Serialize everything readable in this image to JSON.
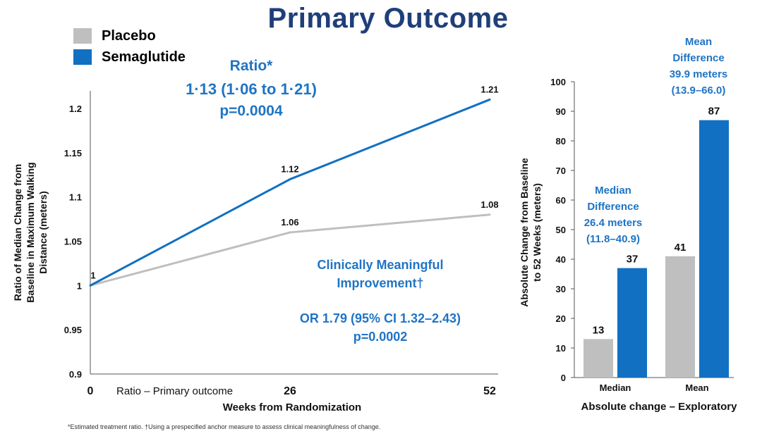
{
  "title": "Primary Outcome",
  "colors": {
    "placebo": "#bfbfbf",
    "semaglutide": "#1170c2",
    "title": "#1f3f7a",
    "annotation": "#1f74c4"
  },
  "legend": [
    {
      "label": "Placebo",
      "color": "#bfbfbf"
    },
    {
      "label": "Semaglutide",
      "color": "#1170c2"
    }
  ],
  "footnote": "*Estimated treatment ratio. †Using a prespecified anchor measure to assess clinical meaningfulness of change.",
  "chart_data": [
    {
      "type": "line",
      "x": [
        0,
        26,
        52
      ],
      "x_tick_labels": [
        "0",
        "26",
        "52"
      ],
      "x_inline_label": "Ratio – Primary outcome",
      "xlabel": "Weeks from Randomization",
      "ylabel_lines": [
        "Ratio of Median Change from",
        "Baseline in Maximum Walking",
        "Distance (meters)"
      ],
      "ylim": [
        0.9,
        1.2
      ],
      "y_ticks": [
        0.9,
        0.95,
        1,
        1.05,
        1.1,
        1.15,
        1.2
      ],
      "y_tick_labels": [
        "0.9",
        "0.95",
        "1",
        "1.05",
        "1.1",
        "1.15",
        "1.2"
      ],
      "series": [
        {
          "name": "Placebo",
          "color": "#bfbfbf",
          "values": [
            1,
            1.06,
            1.08
          ],
          "labels": [
            "",
            "1.06",
            "1.08"
          ]
        },
        {
          "name": "Semaglutide",
          "color": "#1170c2",
          "values": [
            1,
            1.12,
            1.21
          ],
          "labels": [
            "1",
            "1.12",
            "1.21"
          ]
        }
      ],
      "annotations": {
        "ratio": [
          "Ratio*",
          "1·13 (1·06 to 1·21)",
          "p=0.0004"
        ],
        "clinical": [
          "Clinically Meaningful",
          "Improvement†",
          "",
          "OR 1.79 (95% CI 1.32–2.43)",
          "p=0.0002"
        ]
      },
      "grid": false
    },
    {
      "type": "bar",
      "categories": [
        "Median",
        "Mean"
      ],
      "series": [
        {
          "name": "Placebo",
          "color": "#bfbfbf",
          "values": [
            13,
            41
          ]
        },
        {
          "name": "Semaglutide",
          "color": "#1170c2",
          "values": [
            37,
            87
          ]
        }
      ],
      "xlabel": "Absolute change – Exploratory",
      "ylabel_lines": [
        "Absolute Change from Baseline",
        "to 52 Weeks (meters)"
      ],
      "ylim": [
        0,
        100
      ],
      "y_ticks": [
        0,
        10,
        20,
        30,
        40,
        50,
        60,
        70,
        80,
        90,
        100
      ],
      "y_tick_labels": [
        "0",
        "10",
        "20",
        "30",
        "40",
        "50",
        "60",
        "70",
        "80",
        "90",
        "100"
      ],
      "annotations": {
        "median": [
          "Median",
          "Difference",
          "26.4 meters",
          "(11.8–40.9)"
        ],
        "mean": [
          "Mean",
          "Difference",
          "39.9 meters",
          "(13.9–66.0)"
        ]
      },
      "grid": false
    }
  ]
}
